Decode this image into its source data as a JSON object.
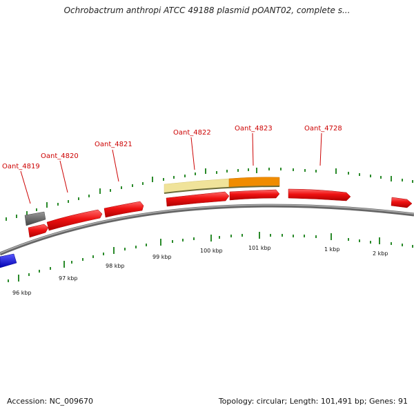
{
  "title": "Ochrobactrum anthropi ATCC 49188 plasmid pOANT02, complete s...",
  "footer": {
    "accession": "Accession: NC_009670",
    "summary": "Topology: circular; Length: 101,491 bp; Genes: 91"
  },
  "colors": {
    "gene_red": "#ee1111",
    "rna_blue": "#1a1aee",
    "pseudo_gray": "#666666",
    "region_pale": "#f0e39a",
    "region_orange": "#f08c00",
    "ruler_green": "#2a8a2a",
    "backbone": "#888888"
  },
  "gene_labels": [
    "Oant_4819",
    "Oant_4820",
    "Oant_4821",
    "Oant_4822",
    "Oant_4823",
    "Oant_4728"
  ],
  "ruler_labels": [
    "96 kbp",
    "97 kbp",
    "98 kbp",
    "99 kbp",
    "100 kbp",
    "101 kbp",
    "1 kbp",
    "2 kbp"
  ]
}
